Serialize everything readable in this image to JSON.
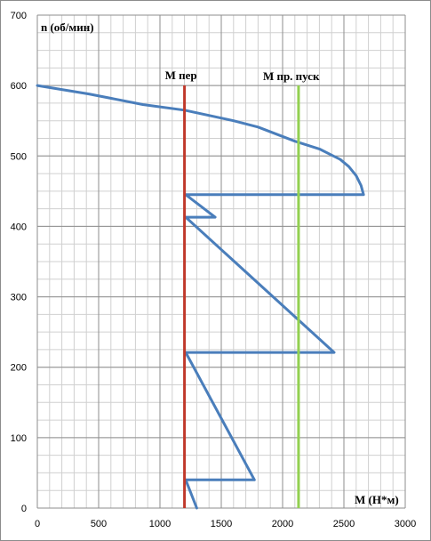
{
  "chart_data": {
    "type": "line",
    "title": "",
    "xlabel": "М (Н*м)",
    "ylabel": "n (об/мин)",
    "xlim": [
      0,
      3000
    ],
    "ylim": [
      0,
      700
    ],
    "x_ticks": [
      0,
      500,
      1000,
      1500,
      2000,
      2500,
      3000
    ],
    "y_ticks": [
      0,
      100,
      200,
      300,
      400,
      500,
      600,
      700
    ],
    "x_tick_labels": [
      "0",
      "500",
      "1000",
      "1500",
      "2000",
      "2500",
      "3000"
    ],
    "y_tick_labels": [
      "0",
      "100",
      "200",
      "300",
      "400",
      "500",
      "600",
      "700"
    ],
    "grid": {
      "major": true,
      "minor": true,
      "x_minor_step": 100,
      "y_minor_step": 25
    },
    "series": [
      {
        "kind": "curve",
        "color": "#4a7ebb",
        "points": [
          [
            0,
            600
          ],
          [
            420,
            588
          ],
          [
            860,
            573
          ],
          [
            1200,
            565
          ],
          [
            1600,
            550
          ],
          [
            1800,
            541
          ],
          [
            2100,
            521
          ],
          [
            2300,
            510
          ],
          [
            2470,
            495
          ],
          [
            2540,
            485
          ],
          [
            2600,
            472
          ],
          [
            2640,
            458
          ],
          [
            2660,
            445
          ],
          [
            1210,
            445
          ],
          [
            1450,
            413
          ],
          [
            1210,
            413
          ],
          [
            2420,
            221
          ],
          [
            1210,
            221
          ],
          [
            1770,
            40
          ],
          [
            1210,
            40
          ],
          [
            1300,
            0
          ]
        ]
      },
      {
        "kind": "vertical-line",
        "name": "М пер",
        "x": 1200,
        "color": "#c0392b"
      },
      {
        "kind": "vertical-line",
        "name": "М пр. пуск",
        "x": 2130,
        "color": "#92d050"
      }
    ]
  }
}
